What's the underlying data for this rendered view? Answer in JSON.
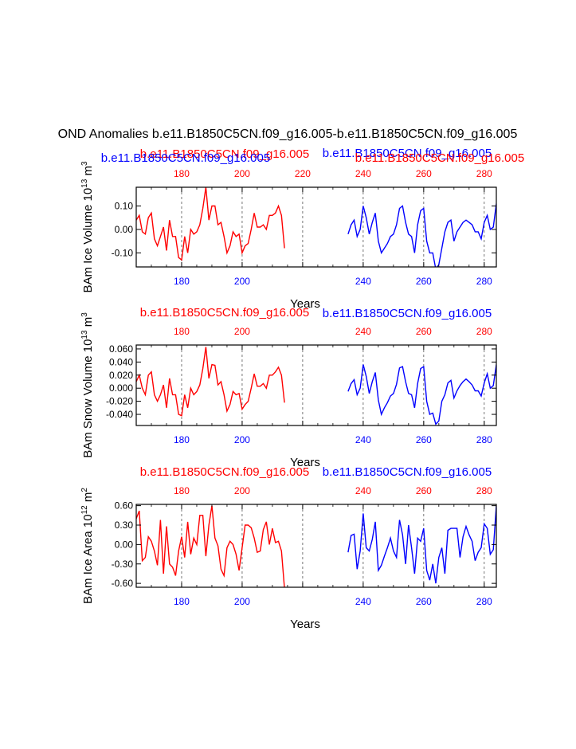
{
  "title": "OND Anomalies b.e11.B1850C5CN.f09_g16.005-b.e11.B1850C5CN.f09_g16.005",
  "colors": {
    "case1": "#ff0000",
    "case2": "#0000ff",
    "axis": "#000000",
    "grid": "#555555"
  },
  "xlabel": "Years",
  "chart_data": [
    {
      "type": "line",
      "ylabel_prefix": "BAm Ice Volume 10",
      "ylabel_exp": "13",
      "ylabel_unit": " m",
      "ylabel_unit_exp": "3",
      "top_label_red": "b.e11.B1850C5CN.f09_g16.005",
      "top_label_blue": "b.e11.B1850C5CN.f09_g16.005",
      "xlim": [
        165,
        284
      ],
      "ylim": [
        -0.16,
        0.18
      ],
      "yticks": [
        -0.1,
        0.0,
        0.1
      ],
      "ytick_labels": [
        "-0.10",
        "0.00",
        "0.10"
      ],
      "xticks": [
        180,
        200,
        220,
        240,
        260,
        280
      ],
      "bottom_tick_labels": [
        "180",
        "200",
        "",
        "240",
        "260",
        "280"
      ],
      "top_tick_labels": [
        "180",
        "200",
        "220",
        "240",
        "260",
        "280"
      ],
      "series": [
        {
          "name": "b.e11.B1850C5CN.f09_g16.005",
          "color": "red",
          "x": [
            165,
            166,
            167,
            168,
            169,
            170,
            171,
            172,
            173,
            174,
            175,
            176,
            177,
            178,
            179,
            180,
            181,
            182,
            183,
            184,
            185,
            186,
            187,
            188,
            189,
            190,
            191,
            192,
            193,
            194,
            195,
            196,
            197,
            198,
            199,
            200,
            201,
            202,
            203,
            204,
            205,
            206,
            207,
            208,
            209,
            210,
            211,
            212,
            213,
            214
          ],
          "values": [
            0.04,
            0.06,
            -0.01,
            -0.02,
            0.05,
            0.07,
            -0.04,
            -0.07,
            -0.03,
            0.01,
            -0.09,
            0.04,
            -0.03,
            -0.03,
            -0.12,
            -0.13,
            -0.03,
            -0.1,
            0.0,
            -0.02,
            -0.01,
            0.02,
            0.09,
            0.18,
            0.04,
            0.1,
            0.1,
            0.02,
            0.03,
            -0.03,
            -0.1,
            -0.07,
            -0.01,
            -0.03,
            -0.02,
            -0.1,
            -0.07,
            -0.06,
            0.0,
            0.07,
            0.01,
            0.01,
            0.02,
            0.0,
            0.06,
            0.06,
            0.07,
            0.1,
            0.06,
            -0.08
          ]
        },
        {
          "name": "b.e11.B1850C5CN.f09_g16.005",
          "color": "blue",
          "x": [
            235,
            236,
            237,
            238,
            239,
            240,
            241,
            242,
            243,
            244,
            245,
            246,
            247,
            248,
            249,
            250,
            251,
            252,
            253,
            254,
            255,
            256,
            257,
            258,
            259,
            260,
            261,
            262,
            263,
            264,
            265,
            266,
            267,
            268,
            269,
            270,
            271,
            272,
            273,
            274,
            275,
            276,
            277,
            278,
            279,
            280,
            281,
            282,
            283,
            284
          ],
          "values": [
            -0.02,
            0.02,
            0.04,
            -0.03,
            0.0,
            0.1,
            0.05,
            -0.02,
            0.03,
            0.07,
            -0.05,
            -0.1,
            -0.08,
            -0.06,
            -0.03,
            -0.02,
            0.02,
            0.09,
            0.1,
            0.03,
            -0.02,
            -0.03,
            -0.1,
            0.02,
            0.08,
            0.09,
            -0.05,
            -0.1,
            -0.1,
            -0.17,
            -0.15,
            -0.08,
            -0.01,
            0.03,
            0.04,
            -0.05,
            -0.01,
            0.01,
            0.03,
            0.04,
            0.03,
            0.02,
            -0.01,
            -0.01,
            -0.04,
            0.03,
            0.06,
            0.0,
            0.01,
            0.11
          ]
        }
      ]
    },
    {
      "type": "line",
      "ylabel_prefix": "BAm Snow Volume 10",
      "ylabel_exp": "13",
      "ylabel_unit": " m",
      "ylabel_unit_exp": "3",
      "top_label_red": "b.e11.B1850C5CN.f09_g16.005",
      "top_label_blue": "b.e11.B1850C5CN.f09_g16.005",
      "xlim": [
        165,
        284
      ],
      "ylim": [
        -0.057,
        0.066
      ],
      "yticks": [
        -0.04,
        -0.02,
        0.0,
        0.02,
        0.04,
        0.06
      ],
      "ytick_labels": [
        "-0.040",
        "-0.020",
        "0.000",
        "0.020",
        "0.040",
        "0.060"
      ],
      "xticks": [
        180,
        200,
        220,
        240,
        260,
        280
      ],
      "bottom_tick_labels": [
        "180",
        "200",
        "",
        "240",
        "260",
        "280"
      ],
      "top_tick_labels": [
        "180",
        "200",
        "",
        "240",
        "260",
        "280"
      ],
      "series": [
        {
          "name": "b.e11.B1850C5CN.f09_g16.005",
          "color": "red",
          "x": [
            165,
            166,
            167,
            168,
            169,
            170,
            171,
            172,
            173,
            174,
            175,
            176,
            177,
            178,
            179,
            180,
            181,
            182,
            183,
            184,
            185,
            186,
            187,
            188,
            189,
            190,
            191,
            192,
            193,
            194,
            195,
            196,
            197,
            198,
            199,
            200,
            201,
            202,
            203,
            204,
            205,
            206,
            207,
            208,
            209,
            210,
            211,
            212,
            213,
            214
          ],
          "values": [
            0.01,
            0.02,
            0.0,
            -0.01,
            0.02,
            0.025,
            -0.01,
            -0.02,
            -0.01,
            0.005,
            -0.03,
            0.015,
            -0.01,
            -0.01,
            -0.04,
            -0.042,
            -0.01,
            -0.03,
            0.0,
            -0.01,
            -0.005,
            0.005,
            0.03,
            0.063,
            0.015,
            0.036,
            0.035,
            0.005,
            0.01,
            -0.01,
            -0.035,
            -0.025,
            -0.005,
            -0.01,
            -0.008,
            -0.032,
            -0.025,
            -0.02,
            0.0,
            0.022,
            0.003,
            0.003,
            0.007,
            0.0,
            0.02,
            0.02,
            0.025,
            0.032,
            0.02,
            -0.022
          ]
        },
        {
          "name": "b.e11.B1850C5CN.f09_g16.005",
          "color": "blue",
          "x": [
            235,
            236,
            237,
            238,
            239,
            240,
            241,
            242,
            243,
            244,
            245,
            246,
            247,
            248,
            249,
            250,
            251,
            252,
            253,
            254,
            255,
            256,
            257,
            258,
            259,
            260,
            261,
            262,
            263,
            264,
            265,
            266,
            267,
            268,
            269,
            270,
            271,
            272,
            273,
            274,
            275,
            276,
            277,
            278,
            279,
            280,
            281,
            282,
            283,
            284
          ],
          "values": [
            -0.005,
            0.007,
            0.013,
            -0.01,
            0.0,
            0.036,
            0.018,
            -0.008,
            0.01,
            0.024,
            -0.018,
            -0.04,
            -0.03,
            -0.022,
            -0.012,
            -0.008,
            0.006,
            0.031,
            0.033,
            0.01,
            -0.008,
            -0.01,
            -0.03,
            0.007,
            0.03,
            0.033,
            -0.02,
            -0.04,
            -0.038,
            -0.055,
            -0.05,
            -0.02,
            -0.01,
            0.008,
            0.012,
            -0.015,
            -0.004,
            0.004,
            0.01,
            0.014,
            0.01,
            0.005,
            -0.004,
            -0.004,
            -0.012,
            0.008,
            0.022,
            0.0,
            0.004,
            0.036
          ]
        }
      ]
    },
    {
      "type": "line",
      "ylabel_prefix": "BAm Ice Area 10",
      "ylabel_exp": "12",
      "ylabel_unit": " m",
      "ylabel_unit_exp": "2",
      "top_label_red": "b.e11.B1850C5CN.f09_g16.005",
      "top_label_blue": "b.e11.B1850C5CN.f09_g16.005",
      "xlim": [
        165,
        284
      ],
      "ylim": [
        -0.66,
        0.62
      ],
      "yticks": [
        -0.6,
        -0.3,
        0.0,
        0.3,
        0.6
      ],
      "ytick_labels": [
        "-0.60",
        "-0.30",
        "0.00",
        "0.30",
        "0.60"
      ],
      "xticks": [
        180,
        200,
        220,
        240,
        260,
        280
      ],
      "bottom_tick_labels": [
        "180",
        "200",
        "",
        "240",
        "260",
        "280"
      ],
      "top_tick_labels": [
        "180",
        "200",
        "",
        "240",
        "260",
        "280"
      ],
      "series": [
        {
          "name": "b.e11.B1850C5CN.f09_g16.005",
          "color": "red",
          "x": [
            165,
            166,
            167,
            168,
            169,
            170,
            171,
            172,
            173,
            174,
            175,
            176,
            177,
            178,
            179,
            180,
            181,
            182,
            183,
            184,
            185,
            186,
            187,
            188,
            189,
            190,
            191,
            192,
            193,
            194,
            195,
            196,
            197,
            198,
            199,
            200,
            201,
            202,
            203,
            204,
            205,
            206,
            207,
            208,
            209,
            210,
            211,
            212,
            213,
            214
          ],
          "values": [
            0.4,
            0.52,
            -0.25,
            -0.2,
            0.12,
            0.05,
            -0.1,
            -0.32,
            0.38,
            -0.45,
            0.28,
            -0.3,
            -0.35,
            -0.48,
            -0.1,
            0.12,
            -0.2,
            0.35,
            -0.15,
            0.1,
            0.0,
            0.45,
            0.45,
            -0.18,
            0.3,
            0.6,
            0.1,
            -0.02,
            -0.38,
            -0.48,
            -0.05,
            0.05,
            0.0,
            -0.15,
            -0.4,
            -0.05,
            0.3,
            0.3,
            0.26,
            0.1,
            -0.12,
            -0.1,
            0.23,
            0.35,
            0.0,
            0.25,
            0.03,
            0.05,
            -0.1,
            -0.68
          ]
        },
        {
          "name": "b.e11.B1850C5CN.f09_g16.005",
          "color": "blue",
          "x": [
            235,
            236,
            237,
            238,
            239,
            240,
            241,
            242,
            243,
            244,
            245,
            246,
            247,
            248,
            249,
            250,
            251,
            252,
            253,
            254,
            255,
            256,
            257,
            258,
            259,
            260,
            261,
            262,
            263,
            264,
            265,
            266,
            267,
            268,
            269,
            270,
            271,
            272,
            273,
            274,
            275,
            276,
            277,
            278,
            279,
            280,
            281,
            282,
            283,
            284
          ],
          "values": [
            -0.12,
            0.14,
            0.16,
            -0.38,
            -0.1,
            0.48,
            -0.05,
            -0.1,
            0.08,
            0.35,
            -0.4,
            -0.32,
            -0.18,
            -0.05,
            0.1,
            -0.1,
            -0.2,
            0.38,
            0.15,
            -0.3,
            0.3,
            -0.05,
            -0.45,
            0.1,
            0.05,
            0.25,
            -0.4,
            -0.55,
            -0.3,
            -0.6,
            -0.2,
            -0.05,
            -0.45,
            0.22,
            0.25,
            0.25,
            0.25,
            -0.2,
            0.12,
            0.28,
            0.15,
            0.05,
            -0.25,
            -0.12,
            -0.05,
            0.32,
            0.25,
            -0.15,
            -0.08,
            0.6
          ]
        }
      ]
    }
  ]
}
